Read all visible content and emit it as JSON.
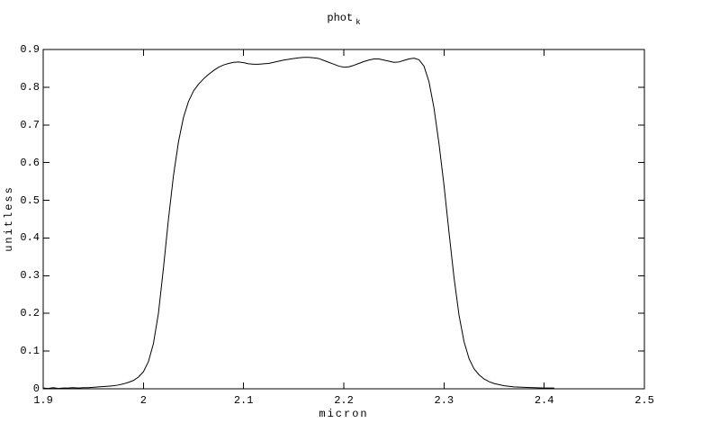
{
  "chart_data": {
    "type": "line",
    "title": {
      "main": "phot",
      "sub": "k"
    },
    "xlabel": "micron",
    "ylabel": "unitless",
    "xlim": [
      1.9,
      2.5
    ],
    "ylim": [
      0,
      0.9
    ],
    "xticks": [
      {
        "value": 1.9,
        "label": "1.9"
      },
      {
        "value": 2.0,
        "label": "2"
      },
      {
        "value": 2.1,
        "label": "2.1"
      },
      {
        "value": 2.2,
        "label": "2.2"
      },
      {
        "value": 2.3,
        "label": "2.3"
      },
      {
        "value": 2.4,
        "label": "2.4"
      },
      {
        "value": 2.5,
        "label": "2.5"
      }
    ],
    "yticks": [
      {
        "value": 0.0,
        "label": "0"
      },
      {
        "value": 0.1,
        "label": "0.1"
      },
      {
        "value": 0.2,
        "label": "0.2"
      },
      {
        "value": 0.3,
        "label": "0.3"
      },
      {
        "value": 0.4,
        "label": "0.4"
      },
      {
        "value": 0.5,
        "label": "0.5"
      },
      {
        "value": 0.6,
        "label": "0.6"
      },
      {
        "value": 0.7,
        "label": "0.7"
      },
      {
        "value": 0.8,
        "label": "0.8"
      },
      {
        "value": 0.9,
        "label": "0.9"
      }
    ],
    "grid": false,
    "legend": null,
    "frame": "box-with-mirrored-inward-ticks",
    "background_color": "#ffffff",
    "line_color": "#000000",
    "series": [
      {
        "name": "phot_k",
        "points": [
          [
            1.9,
            0.002
          ],
          [
            1.905,
            0.001
          ],
          [
            1.91,
            0.003
          ],
          [
            1.915,
            0.001
          ],
          [
            1.92,
            0.002
          ],
          [
            1.925,
            0.002
          ],
          [
            1.93,
            0.003
          ],
          [
            1.935,
            0.002
          ],
          [
            1.94,
            0.003
          ],
          [
            1.945,
            0.003
          ],
          [
            1.95,
            0.004
          ],
          [
            1.955,
            0.005
          ],
          [
            1.96,
            0.006
          ],
          [
            1.965,
            0.007
          ],
          [
            1.97,
            0.008
          ],
          [
            1.975,
            0.01
          ],
          [
            1.98,
            0.013
          ],
          [
            1.985,
            0.017
          ],
          [
            1.99,
            0.022
          ],
          [
            1.995,
            0.031
          ],
          [
            2.0,
            0.045
          ],
          [
            2.005,
            0.072
          ],
          [
            2.01,
            0.12
          ],
          [
            2.015,
            0.2
          ],
          [
            2.02,
            0.32
          ],
          [
            2.025,
            0.45
          ],
          [
            2.03,
            0.565
          ],
          [
            2.035,
            0.655
          ],
          [
            2.04,
            0.72
          ],
          [
            2.045,
            0.762
          ],
          [
            2.05,
            0.79
          ],
          [
            2.055,
            0.808
          ],
          [
            2.06,
            0.822
          ],
          [
            2.065,
            0.834
          ],
          [
            2.07,
            0.844
          ],
          [
            2.075,
            0.853
          ],
          [
            2.08,
            0.859
          ],
          [
            2.085,
            0.863
          ],
          [
            2.09,
            0.866
          ],
          [
            2.095,
            0.867
          ],
          [
            2.1,
            0.865
          ],
          [
            2.105,
            0.862
          ],
          [
            2.11,
            0.861
          ],
          [
            2.115,
            0.861
          ],
          [
            2.12,
            0.862
          ],
          [
            2.125,
            0.863
          ],
          [
            2.13,
            0.866
          ],
          [
            2.135,
            0.869
          ],
          [
            2.14,
            0.872
          ],
          [
            2.145,
            0.874
          ],
          [
            2.15,
            0.876
          ],
          [
            2.155,
            0.878
          ],
          [
            2.16,
            0.879
          ],
          [
            2.165,
            0.879
          ],
          [
            2.17,
            0.878
          ],
          [
            2.175,
            0.876
          ],
          [
            2.18,
            0.871
          ],
          [
            2.185,
            0.866
          ],
          [
            2.19,
            0.861
          ],
          [
            2.195,
            0.856
          ],
          [
            2.2,
            0.853
          ],
          [
            2.205,
            0.854
          ],
          [
            2.21,
            0.858
          ],
          [
            2.215,
            0.863
          ],
          [
            2.22,
            0.868
          ],
          [
            2.225,
            0.872
          ],
          [
            2.23,
            0.875
          ],
          [
            2.235,
            0.875
          ],
          [
            2.24,
            0.872
          ],
          [
            2.245,
            0.869
          ],
          [
            2.25,
            0.866
          ],
          [
            2.255,
            0.867
          ],
          [
            2.26,
            0.871
          ],
          [
            2.265,
            0.875
          ],
          [
            2.27,
            0.877
          ],
          [
            2.275,
            0.873
          ],
          [
            2.28,
            0.856
          ],
          [
            2.285,
            0.815
          ],
          [
            2.29,
            0.745
          ],
          [
            2.295,
            0.65
          ],
          [
            2.3,
            0.54
          ],
          [
            2.305,
            0.415
          ],
          [
            2.31,
            0.295
          ],
          [
            2.315,
            0.195
          ],
          [
            2.32,
            0.125
          ],
          [
            2.325,
            0.08
          ],
          [
            2.33,
            0.053
          ],
          [
            2.335,
            0.037
          ],
          [
            2.34,
            0.026
          ],
          [
            2.345,
            0.019
          ],
          [
            2.35,
            0.014
          ],
          [
            2.355,
            0.011
          ],
          [
            2.36,
            0.008
          ],
          [
            2.37,
            0.005
          ],
          [
            2.38,
            0.004
          ],
          [
            2.39,
            0.003
          ],
          [
            2.4,
            0.002
          ],
          [
            2.41,
            0.002
          ]
        ]
      }
    ]
  }
}
